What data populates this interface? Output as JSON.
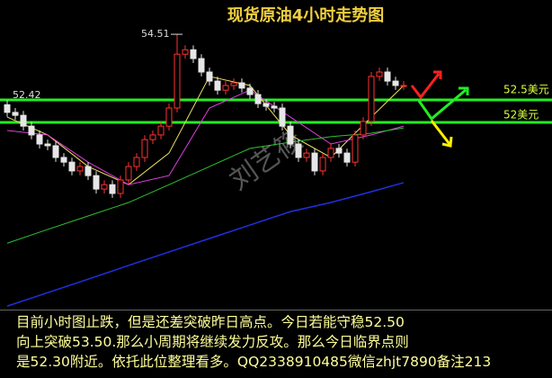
{
  "chart_data": {
    "type": "candlestick",
    "title": "现货原油4小时走势图",
    "ylim": [
      45.07,
      54.82
    ],
    "up_color": "#ff3232",
    "down_color": "#e6e6e6",
    "open": [
      52.1,
      51.84,
      51.74,
      51.37,
      51.07,
      50.76,
      50.7,
      50.3,
      50.14,
      49.84,
      49.99,
      49.68,
      49.22,
      49.37,
      49.07,
      49.53,
      49.99,
      50.3,
      50.91,
      51.07,
      51.37,
      51.99,
      53.83,
      53.98,
      53.68,
      53.22,
      52.91,
      52.6,
      52.76,
      52.85,
      52.67,
      52.45,
      52.14,
      52.05,
      51.99,
      51.37,
      50.76,
      50.3,
      50.45,
      49.84,
      50.3,
      50.61,
      50.45,
      50.14,
      51.07,
      51.53,
      53.07,
      53.22,
      52.91,
      52.76
    ],
    "high": [
      52.25,
      51.99,
      51.89,
      51.52,
      51.22,
      50.91,
      50.85,
      50.45,
      50.29,
      50.14,
      50.14,
      49.83,
      49.52,
      49.52,
      49.68,
      50.14,
      50.45,
      51.06,
      51.22,
      51.52,
      52.14,
      54.51,
      54.13,
      54.13,
      53.83,
      53.37,
      53.06,
      52.91,
      53.0,
      53.0,
      52.82,
      52.6,
      52.29,
      52.2,
      52.14,
      51.52,
      50.91,
      50.6,
      50.6,
      50.45,
      50.76,
      50.76,
      50.6,
      51.22,
      51.68,
      53.22,
      53.37,
      53.37,
      53.06,
      52.91
    ],
    "low": [
      51.69,
      51.59,
      51.22,
      50.92,
      50.61,
      50.55,
      50.15,
      49.99,
      49.69,
      49.69,
      49.53,
      49.07,
      49.07,
      48.92,
      48.92,
      49.38,
      49.84,
      50.15,
      50.76,
      50.92,
      51.22,
      51.84,
      53.68,
      53.53,
      53.07,
      52.76,
      52.45,
      52.45,
      52.61,
      52.52,
      52.3,
      51.99,
      51.9,
      51.84,
      51.22,
      50.61,
      50.15,
      50.15,
      49.69,
      49.69,
      50.15,
      50.3,
      49.99,
      49.99,
      50.92,
      51.38,
      52.92,
      52.76,
      52.61,
      52.61
    ],
    "close": [
      51.84,
      51.74,
      51.37,
      51.07,
      50.76,
      50.7,
      50.3,
      50.14,
      49.84,
      49.99,
      49.68,
      49.22,
      49.37,
      49.07,
      49.53,
      49.99,
      50.3,
      50.91,
      51.07,
      51.37,
      51.99,
      53.83,
      53.98,
      53.68,
      53.22,
      52.91,
      52.6,
      52.76,
      52.85,
      52.67,
      52.45,
      52.14,
      52.05,
      51.99,
      51.37,
      50.76,
      50.3,
      50.45,
      49.84,
      50.3,
      50.61,
      50.45,
      50.14,
      51.07,
      51.53,
      53.07,
      53.22,
      52.91,
      52.76,
      52.76
    ],
    "series": [
      {
        "color": "#f0e060",
        "x": [
          0,
          5,
          10,
          15,
          20,
          25,
          30,
          35,
          40,
          45,
          49
        ],
        "values": [
          51.68,
          51.07,
          49.99,
          49.37,
          50.45,
          53.07,
          52.76,
          51.07,
          50.3,
          51.68,
          52.76
        ]
      },
      {
        "color": "#e040e0",
        "x": [
          0,
          5,
          10,
          15,
          20,
          25,
          30,
          35,
          40,
          45,
          49
        ],
        "values": [
          51.22,
          51.07,
          50.14,
          49.37,
          49.68,
          51.99,
          52.6,
          51.68,
          50.76,
          51.07,
          51.37
        ]
      },
      {
        "color": "#30c030",
        "x": [
          0,
          5,
          10,
          15,
          20,
          25,
          30,
          35,
          40,
          45,
          49
        ],
        "values": [
          47.37,
          47.84,
          48.3,
          48.76,
          49.37,
          49.99,
          50.61,
          50.82,
          51.01,
          51.13,
          51.31
        ]
      },
      {
        "color": "#2030e0",
        "x": [
          0,
          5,
          10,
          15,
          20,
          25,
          30,
          35,
          40,
          45,
          49
        ],
        "values": [
          45.22,
          45.68,
          46.14,
          46.61,
          47.07,
          47.53,
          47.99,
          48.45,
          48.76,
          49.13,
          49.44
        ]
      }
    ],
    "price_labels": [
      54.51,
      52.42
    ],
    "level_labels": [
      "52.5美元",
      "52美元"
    ],
    "watermark": "刘艺筱",
    "notes": [
      "目前小时图止跌，但是还差突破昨日高点。今日若能守稳52.50",
      "向上突破53.50.那么小周期将继续发力反攻。那么今日临界点则",
      "是52.30附近。依托此位整理看多。QQ2338910485微信zhjt7890备注213"
    ]
  }
}
